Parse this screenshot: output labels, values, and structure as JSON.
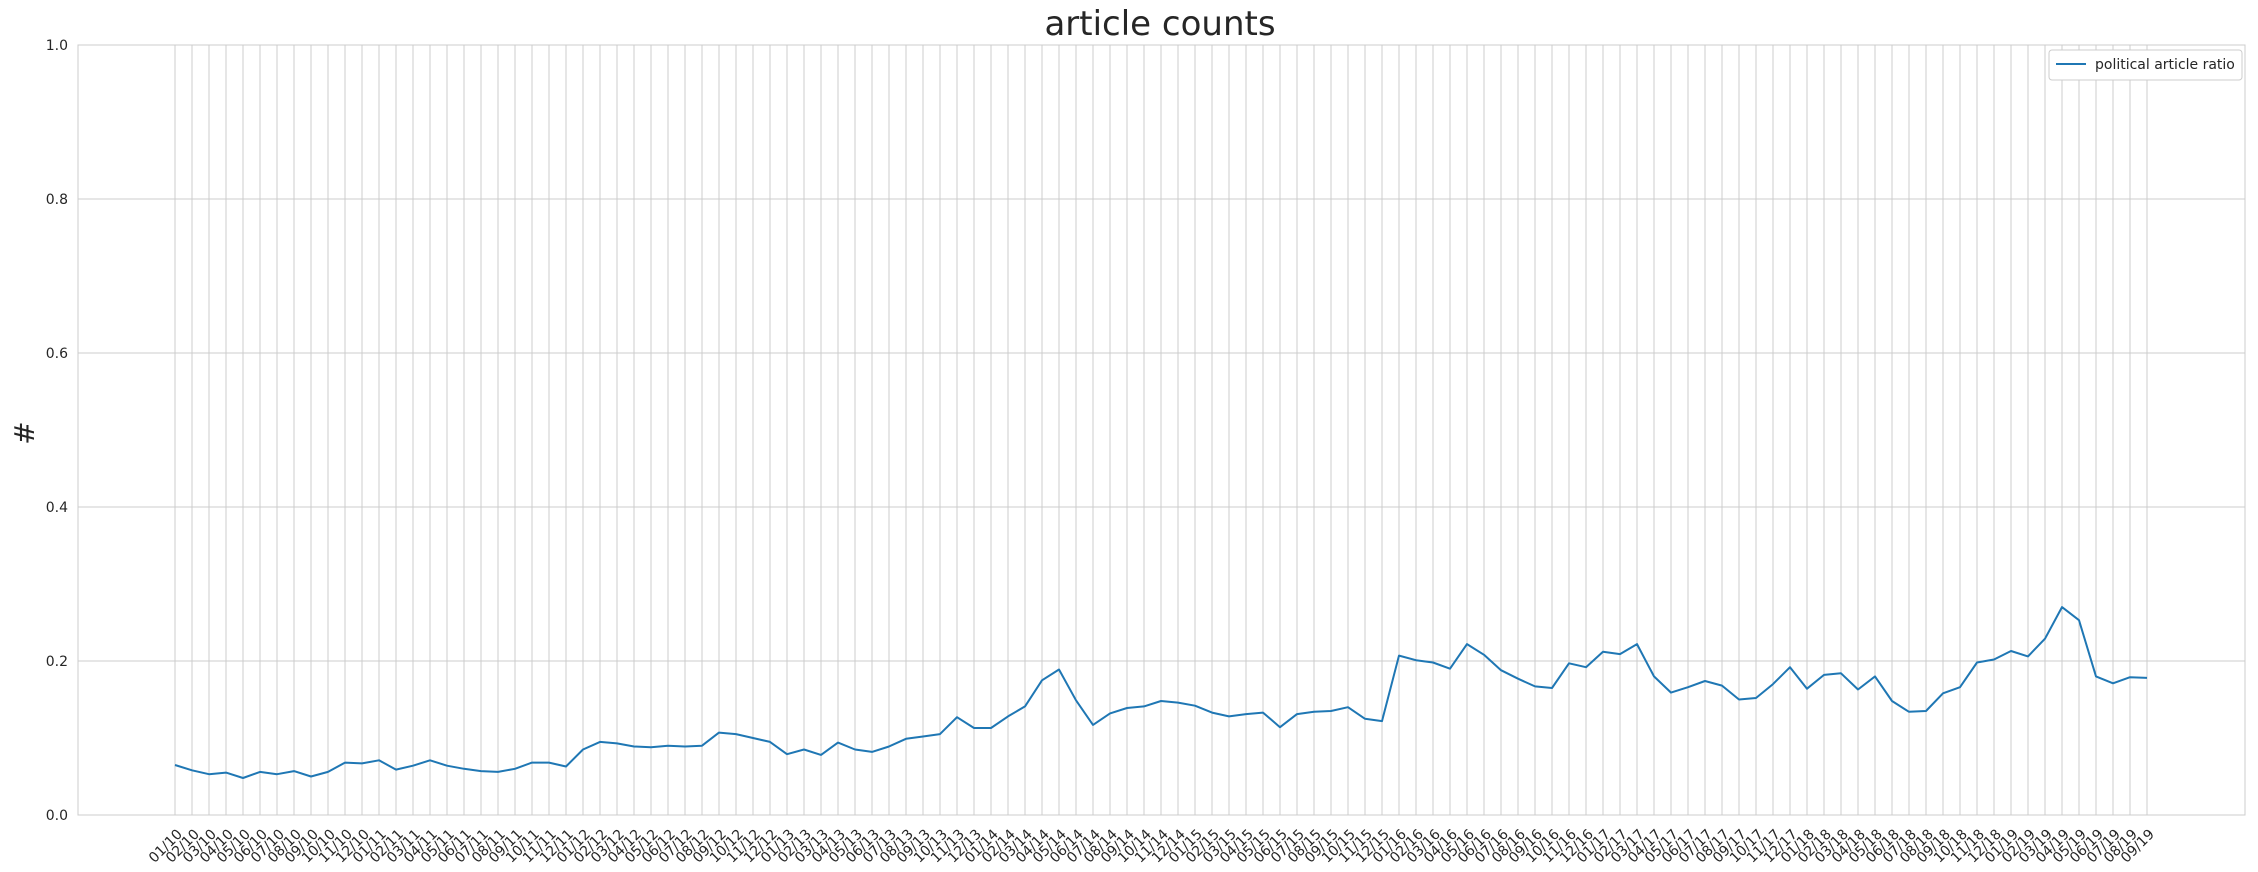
{
  "chart_data": {
    "type": "line",
    "title": "article counts",
    "xlabel": "",
    "ylabel": "#",
    "ylim": [
      0.0,
      1.0
    ],
    "yticks": [
      "0.0",
      "0.2",
      "0.4",
      "0.6",
      "0.8",
      "1.0"
    ],
    "grid": true,
    "legend_placement": "top-right",
    "series_color": "#1f77b4",
    "x": [
      "01/10",
      "02/10",
      "03/10",
      "04/10",
      "05/10",
      "06/10",
      "07/10",
      "08/10",
      "09/10",
      "10/10",
      "11/10",
      "12/10",
      "01/11",
      "02/11",
      "03/11",
      "04/11",
      "05/11",
      "06/11",
      "07/11",
      "08/11",
      "09/11",
      "10/11",
      "11/11",
      "12/11",
      "01/12",
      "02/12",
      "03/12",
      "04/12",
      "05/12",
      "06/12",
      "07/12",
      "08/12",
      "09/12",
      "10/12",
      "11/12",
      "12/12",
      "01/13",
      "02/13",
      "03/13",
      "04/13",
      "05/13",
      "06/13",
      "07/13",
      "08/13",
      "09/13",
      "10/13",
      "11/13",
      "12/13",
      "01/14",
      "02/14",
      "03/14",
      "04/14",
      "05/14",
      "06/14",
      "07/14",
      "08/14",
      "09/14",
      "10/14",
      "11/14",
      "12/14",
      "01/15",
      "02/15",
      "03/15",
      "04/15",
      "05/15",
      "06/15",
      "07/15",
      "08/15",
      "09/15",
      "10/15",
      "11/15",
      "12/15",
      "01/16",
      "02/16",
      "03/16",
      "04/16",
      "05/16",
      "06/16",
      "07/16",
      "08/16",
      "09/16",
      "10/16",
      "11/16",
      "12/16",
      "01/17",
      "02/17",
      "03/17",
      "04/17",
      "05/17",
      "06/17",
      "07/17",
      "08/17",
      "09/17",
      "10/17",
      "11/17",
      "12/17",
      "01/18",
      "02/18",
      "03/18",
      "04/18",
      "05/18",
      "06/18",
      "07/18",
      "08/18",
      "09/18",
      "10/18",
      "11/18",
      "12/18",
      "01/19",
      "02/19",
      "03/19",
      "04/19",
      "05/19",
      "06/19",
      "07/19",
      "08/19",
      "09/19"
    ],
    "series": [
      {
        "name": "political article ratio",
        "values": [
          0.065,
          0.058,
          0.053,
          0.055,
          0.048,
          0.056,
          0.053,
          0.057,
          0.05,
          0.056,
          0.068,
          0.067,
          0.071,
          0.059,
          0.064,
          0.071,
          0.064,
          0.06,
          0.057,
          0.056,
          0.06,
          0.068,
          0.068,
          0.063,
          0.085,
          0.095,
          0.093,
          0.089,
          0.088,
          0.09,
          0.089,
          0.09,
          0.107,
          0.105,
          0.1,
          0.095,
          0.079,
          0.085,
          0.078,
          0.094,
          0.085,
          0.082,
          0.089,
          0.099,
          0.102,
          0.105,
          0.127,
          0.113,
          0.113,
          0.128,
          0.141,
          0.175,
          0.189,
          0.149,
          0.117,
          0.132,
          0.139,
          0.141,
          0.148,
          0.146,
          0.142,
          0.133,
          0.128,
          0.131,
          0.133,
          0.114,
          0.131,
          0.134,
          0.135,
          0.14,
          0.125,
          0.122,
          0.207,
          0.201,
          0.198,
          0.19,
          0.222,
          0.208,
          0.188,
          0.177,
          0.167,
          0.165,
          0.197,
          0.192,
          0.212,
          0.209,
          0.222,
          0.18,
          0.159,
          0.166,
          0.174,
          0.168,
          0.15,
          0.152,
          0.17,
          0.192,
          0.164,
          0.182,
          0.184,
          0.163,
          0.18,
          0.148,
          0.134,
          0.135,
          0.158,
          0.166,
          0.198,
          0.202,
          0.213,
          0.206,
          0.229,
          0.27,
          0.253,
          0.18,
          0.171,
          0.179,
          0.178
        ]
      }
    ]
  }
}
